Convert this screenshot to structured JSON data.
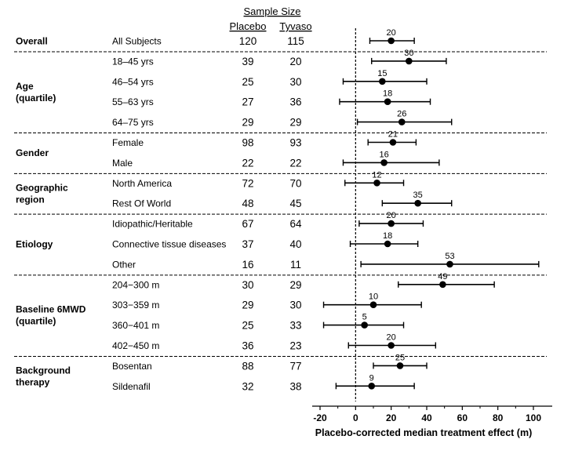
{
  "chart_data": {
    "type": "forest",
    "header": {
      "title": "Sample Size",
      "placebo": "Placebo",
      "tyvaso": "Tyvaso"
    },
    "xlabel": "Placebo-corrected median treatment effect (m)",
    "xlim": [
      -20,
      100
    ],
    "xticks": [
      "-20",
      "0",
      "20",
      "40",
      "60",
      "80",
      "100"
    ],
    "reference_line": 0,
    "groups": [
      {
        "label": "Overall",
        "rows": [
          {
            "subgroup": "All Subjects",
            "placebo": "120",
            "tyvaso": "115",
            "estimate": 20,
            "estimate_label": "20",
            "ci": [
              8,
              33
            ]
          }
        ]
      },
      {
        "label": "Age\n(quartile)",
        "rows": [
          {
            "subgroup": "18–45 yrs",
            "placebo": "39",
            "tyvaso": "20",
            "estimate": 30,
            "estimate_label": "30",
            "ci": [
              9,
              51
            ]
          },
          {
            "subgroup": "46–54 yrs",
            "placebo": "25",
            "tyvaso": "30",
            "estimate": 15,
            "estimate_label": "15",
            "ci": [
              -7,
              40
            ]
          },
          {
            "subgroup": "55–63 yrs",
            "placebo": "27",
            "tyvaso": "36",
            "estimate": 18,
            "estimate_label": "18",
            "ci": [
              -9,
              42
            ]
          },
          {
            "subgroup": "64–75 yrs",
            "placebo": "29",
            "tyvaso": "29",
            "estimate": 26,
            "estimate_label": "26",
            "ci": [
              1,
              54
            ]
          }
        ]
      },
      {
        "label": "Gender",
        "rows": [
          {
            "subgroup": "Female",
            "placebo": "98",
            "tyvaso": "93",
            "estimate": 21,
            "estimate_label": "21",
            "ci": [
              7,
              34
            ]
          },
          {
            "subgroup": "Male",
            "placebo": "22",
            "tyvaso": "22",
            "estimate": 16,
            "estimate_label": "16",
            "ci": [
              -7,
              47
            ]
          }
        ]
      },
      {
        "label": "Geographic\nregion",
        "rows": [
          {
            "subgroup": "North America",
            "placebo": "72",
            "tyvaso": "70",
            "estimate": 12,
            "estimate_label": "12",
            "ci": [
              -6,
              27
            ]
          },
          {
            "subgroup": "Rest Of World",
            "placebo": "48",
            "tyvaso": "45",
            "estimate": 35,
            "estimate_label": "35",
            "ci": [
              15,
              54
            ]
          }
        ]
      },
      {
        "label": "Etiology",
        "rows": [
          {
            "subgroup": "Idiopathic/Heritable",
            "placebo": "67",
            "tyvaso": "64",
            "estimate": 20,
            "estimate_label": "20",
            "ci": [
              2,
              38
            ]
          },
          {
            "subgroup": "Connective tissue diseases",
            "placebo": "37",
            "tyvaso": "40",
            "estimate": 18,
            "estimate_label": "18",
            "ci": [
              -3,
              35
            ]
          },
          {
            "subgroup": "Other",
            "placebo": "16",
            "tyvaso": "11",
            "estimate": 53,
            "estimate_label": "53",
            "ci": [
              3,
              103
            ]
          }
        ]
      },
      {
        "label": "Baseline 6MWD\n(quartile)",
        "rows": [
          {
            "subgroup": "204−300 m",
            "placebo": "30",
            "tyvaso": "29",
            "estimate": 49,
            "estimate_label": "49",
            "ci": [
              24,
              78
            ]
          },
          {
            "subgroup": "303−359 m",
            "placebo": "29",
            "tyvaso": "30",
            "estimate": 10,
            "estimate_label": "10",
            "ci": [
              -18,
              37
            ]
          },
          {
            "subgroup": "360−401 m",
            "placebo": "25",
            "tyvaso": "33",
            "estimate": 5,
            "estimate_label": "5",
            "ci": [
              -18,
              27
            ]
          },
          {
            "subgroup": "402−450 m",
            "placebo": "36",
            "tyvaso": "23",
            "estimate": 20,
            "estimate_label": "20",
            "ci": [
              -4,
              45
            ]
          }
        ]
      },
      {
        "label": "Background\ntherapy",
        "rows": [
          {
            "subgroup": "Bosentan",
            "placebo": "88",
            "tyvaso": "77",
            "estimate": 25,
            "estimate_label": "25",
            "ci": [
              10,
              40
            ]
          },
          {
            "subgroup": "Sildenafil",
            "placebo": "32",
            "tyvaso": "38",
            "estimate": 9,
            "estimate_label": "9",
            "ci": [
              -11,
              33
            ]
          }
        ]
      }
    ]
  }
}
